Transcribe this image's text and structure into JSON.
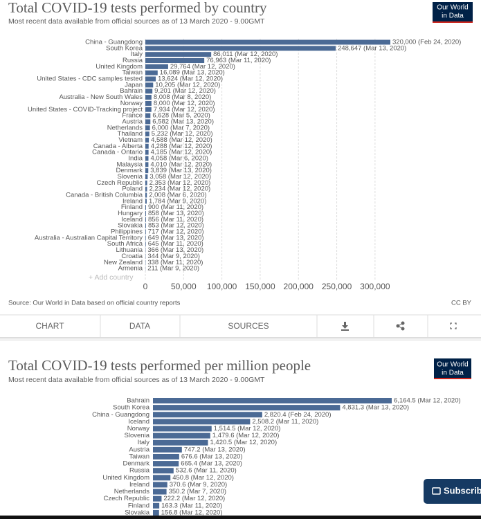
{
  "chart_data": [
    {
      "type": "bar",
      "orientation": "horizontal",
      "title": "Total COVID-19 tests performed by country",
      "subtitle": "Most recent data available from official sources as of 13 March 2020 - 9.00GMT",
      "source": "Source: Our World in Data based on official country reports",
      "license": "CC BY",
      "color": "#4b6a95",
      "categories": [
        "China - Guangdong",
        "South Korea",
        "Italy",
        "Russia",
        "United Kingdom",
        "Taiwan",
        "United States - CDC samples tested",
        "Japan",
        "Bahrain",
        "Australia - New South Wales",
        "Norway",
        "United States - COVID-Tracking project",
        "France",
        "Austria",
        "Netherlands",
        "Thailand",
        "Vietnam",
        "Canada - Alberta",
        "Canada - Ontario",
        "India",
        "Malaysia",
        "Denmark",
        "Slovenia",
        "Czech Republic",
        "Poland",
        "Canada - British Columbia",
        "Ireland",
        "Finland",
        "Hungary",
        "Iceland",
        "Slovakia",
        "Philippines",
        "Australia - Australian Capital Territory",
        "South Africa",
        "Lithuania",
        "Croatia",
        "New Zealand",
        "Armenia"
      ],
      "values": [
        320000,
        248647,
        86011,
        76963,
        29764,
        16089,
        13624,
        10205,
        9201,
        8008,
        8000,
        7934,
        6628,
        6582,
        6000,
        5232,
        4588,
        4288,
        4185,
        4058,
        4010,
        3839,
        3058,
        2353,
        2234,
        2008,
        1784,
        900,
        858,
        856,
        853,
        717,
        649,
        645,
        366,
        344,
        338,
        211
      ],
      "value_labels": [
        "320,000 (Feb 24, 2020)",
        "248,647 (Mar 13, 2020)",
        "86,011 (Mar 12, 2020)",
        "76,963 (Mar 11, 2020)",
        "29,764 (Mar 12, 2020)",
        "16,089 (Mar 13, 2020)",
        "13,624 (Mar 12, 2020)",
        "10,205 (Mar 12, 2020)",
        "9,201 (Mar 12, 2020)",
        "8,008 (Mar 8, 2020)",
        "8,000 (Mar 12, 2020)",
        "7,934 (Mar 12, 2020)",
        "6,628 (Mar 5, 2020)",
        "6,582 (Mar 13, 2020)",
        "6,000 (Mar 7, 2020)",
        "5,232 (Mar 12, 2020)",
        "4,588 (Mar 12, 2020)",
        "4,288 (Mar 12, 2020)",
        "4,185 (Mar 12, 2020)",
        "4,058 (Mar 6, 2020)",
        "4,010 (Mar 12, 2020)",
        "3,839 (Mar 13, 2020)",
        "3,058 (Mar 12, 2020)",
        "2,353 (Mar 12, 2020)",
        "2,234 (Mar 12, 2020)",
        "2,008 (Mar 6, 2020)",
        "1,784 (Mar 9, 2020)",
        "900 (Mar 11, 2020)",
        "858 (Mar 13, 2020)",
        "856 (Mar 11, 2020)",
        "853 (Mar 12, 2020)",
        "717 (Mar 12, 2020)",
        "649 (Mar 13, 2020)",
        "645 (Mar 11, 2020)",
        "366 (Mar 13, 2020)",
        "344 (Mar 9, 2020)",
        "338 (Mar 11, 2020)",
        "211 (Mar 9, 2020)"
      ],
      "xlim": [
        0,
        320000
      ],
      "xticks": [
        0,
        {
          "value": 50000,
          "label": "50,000"
        },
        {
          "value": 100000,
          "label": "100,000"
        },
        {
          "value": 150000,
          "label": "150,000"
        },
        {
          "value": 200000,
          "label": "200,000"
        },
        {
          "value": 250000,
          "label": "250,000"
        },
        {
          "value": 300000,
          "label": "300,000"
        }
      ],
      "grid": true
    },
    {
      "type": "bar",
      "orientation": "horizontal",
      "title": "Total COVID-19 tests performed per million people",
      "subtitle": "Most recent data available from official sources as of 13 March 2020 - 9.00GMT",
      "color": "#4b6a95",
      "categories": [
        "Bahrain",
        "South Korea",
        "China - Guangdong",
        "Iceland",
        "Norway",
        "Slovenia",
        "Italy",
        "Austria",
        "Taiwan",
        "Denmark",
        "Russia",
        "United Kingdom",
        "Ireland",
        "Netherlands",
        "Czech Republic",
        "Finland",
        "Slovakia"
      ],
      "values": [
        6164.5,
        4831.3,
        2820.4,
        2508.2,
        1514.5,
        1479.6,
        1420.5,
        747.2,
        676.6,
        665.4,
        532.6,
        450.8,
        370.6,
        350.2,
        222.2,
        163.3,
        156.8
      ],
      "value_labels": [
        "6,164.5 (Mar 12, 2020)",
        "4,831.3 (Mar 13, 2020)",
        "2,820.4 (Feb 24, 2020)",
        "2,508.2 (Mar 11, 2020)",
        "1,514.5 (Mar 12, 2020)",
        "1,479.6 (Mar 12, 2020)",
        "1,420.5 (Mar 12, 2020)",
        "747.2 (Mar 13, 2020)",
        "676.6 (Mar 13, 2020)",
        "665.4 (Mar 13, 2020)",
        "532.6 (Mar 11, 2020)",
        "450.8 (Mar 12, 2020)",
        "370.6 (Mar 9, 2020)",
        "350.2 (Mar 7, 2020)",
        "222.2 (Mar 12, 2020)",
        "163.3 (Mar 11, 2020)",
        "156.8 (Mar 12, 2020)"
      ],
      "grid": false
    }
  ],
  "ui": {
    "logo": [
      "Our World",
      "in Data"
    ],
    "add_country": "+ Add country",
    "tabs": [
      "CHART",
      "DATA",
      "SOURCES"
    ],
    "subscribe": "Subscribe"
  }
}
